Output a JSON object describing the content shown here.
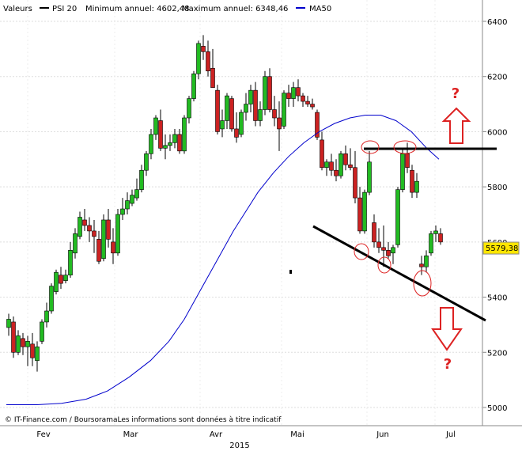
{
  "legend": {
    "valeurs_label": "Valeurs",
    "psi_label": "PSI 20",
    "min_label": "Minimum annuel: 4602,48",
    "max_label": "Maximum annuel: 6348,46",
    "ma_label": "MA50",
    "psi_color": "#000000",
    "ma_color": "#0000cc"
  },
  "footer": {
    "credit": "© IT-Finance.com / BoursoramaLes informations sont données à titre indicatif"
  },
  "last_price": {
    "label": "5579,38",
    "value": 5579.38
  },
  "annotations": {
    "question_top": "?",
    "question_bottom": "?"
  },
  "chart_data": {
    "type": "candlestick",
    "y_ticks": [
      5000,
      5200,
      5400,
      5600,
      5800,
      6000,
      6200,
      6400
    ],
    "y_tick_labels": [
      "5000",
      "5200",
      "5400",
      "5600",
      "5800",
      "6000",
      "6200",
      "6400"
    ],
    "ylim": [
      4960,
      6460
    ],
    "x_ticks": [
      "Fev",
      "Mar",
      "Avr",
      "Mai",
      "Jun",
      "Jul"
    ],
    "x_year": "2015",
    "colors": {
      "up": "#22bb22",
      "down": "#cc2222",
      "annot": "#dd2222"
    },
    "candles": [
      [
        5290,
        5340,
        5260,
        5320
      ],
      [
        5310,
        5330,
        5180,
        5200
      ],
      [
        5200,
        5280,
        5190,
        5260
      ],
      [
        5250,
        5270,
        5190,
        5220
      ],
      [
        5220,
        5260,
        5150,
        5240
      ],
      [
        5230,
        5270,
        5150,
        5180
      ],
      [
        5170,
        5240,
        5130,
        5220
      ],
      [
        5240,
        5320,
        5230,
        5310
      ],
      [
        5310,
        5380,
        5290,
        5350
      ],
      [
        5350,
        5450,
        5340,
        5440
      ],
      [
        5420,
        5500,
        5410,
        5490
      ],
      [
        5480,
        5510,
        5430,
        5450
      ],
      [
        5460,
        5500,
        5450,
        5480
      ],
      [
        5480,
        5600,
        5470,
        5570
      ],
      [
        5560,
        5650,
        5540,
        5630
      ],
      [
        5620,
        5710,
        5610,
        5690
      ],
      [
        5680,
        5720,
        5640,
        5660
      ],
      [
        5660,
        5690,
        5600,
        5640
      ],
      [
        5640,
        5680,
        5560,
        5620
      ],
      [
        5610,
        5640,
        5520,
        5530
      ],
      [
        5540,
        5700,
        5530,
        5680
      ],
      [
        5680,
        5720,
        5580,
        5610
      ],
      [
        5600,
        5650,
        5520,
        5560
      ],
      [
        5560,
        5720,
        5550,
        5700
      ],
      [
        5700,
        5760,
        5680,
        5720
      ],
      [
        5720,
        5780,
        5700,
        5750
      ],
      [
        5740,
        5790,
        5730,
        5770
      ],
      [
        5760,
        5830,
        5750,
        5790
      ],
      [
        5790,
        5880,
        5780,
        5860
      ],
      [
        5860,
        5930,
        5840,
        5920
      ],
      [
        5920,
        6010,
        5900,
        5990
      ],
      [
        5990,
        6060,
        5970,
        6050
      ],
      [
        6040,
        6080,
        5930,
        5940
      ],
      [
        5940,
        5990,
        5900,
        5950
      ],
      [
        5950,
        5990,
        5930,
        5960
      ],
      [
        5960,
        6010,
        5940,
        5990
      ],
      [
        5990,
        6010,
        5920,
        5930
      ],
      [
        5930,
        6060,
        5920,
        6050
      ],
      [
        6050,
        6130,
        6030,
        6120
      ],
      [
        6120,
        6220,
        6110,
        6210
      ],
      [
        6210,
        6330,
        6190,
        6320
      ],
      [
        6310,
        6350,
        6260,
        6290
      ],
      [
        6290,
        6330,
        6200,
        6220
      ],
      [
        6230,
        6300,
        6160,
        6160
      ],
      [
        6150,
        6170,
        5990,
        6000
      ],
      [
        6010,
        6080,
        5980,
        6040
      ],
      [
        6040,
        6140,
        6010,
        6130
      ],
      [
        6120,
        6130,
        6000,
        6010
      ],
      [
        6010,
        6070,
        5960,
        5980
      ],
      [
        5990,
        6080,
        5980,
        6070
      ],
      [
        6070,
        6140,
        6040,
        6100
      ],
      [
        6100,
        6170,
        6070,
        6150
      ],
      [
        6150,
        6180,
        6020,
        6040
      ],
      [
        6040,
        6110,
        6020,
        6080
      ],
      [
        6080,
        6220,
        6060,
        6200
      ],
      [
        6200,
        6230,
        6070,
        6080
      ],
      [
        6080,
        6130,
        6020,
        6050
      ],
      [
        6050,
        6110,
        5930,
        6010
      ],
      [
        6020,
        6150,
        6010,
        6140
      ],
      [
        6140,
        6170,
        6090,
        6120
      ],
      [
        6120,
        6180,
        6090,
        6160
      ],
      [
        6160,
        6190,
        6110,
        6130
      ],
      [
        6130,
        6140,
        6090,
        6110
      ],
      [
        6110,
        6130,
        6090,
        6100
      ],
      [
        6100,
        6120,
        6080,
        6090
      ],
      [
        6070,
        6080,
        5970,
        5980
      ],
      [
        5970,
        6000,
        5860,
        5870
      ],
      [
        5870,
        5900,
        5840,
        5890
      ],
      [
        5890,
        5920,
        5840,
        5860
      ],
      [
        5860,
        5900,
        5820,
        5840
      ],
      [
        5840,
        5930,
        5830,
        5920
      ],
      [
        5920,
        5950,
        5860,
        5880
      ],
      [
        5880,
        5940,
        5860,
        5870
      ],
      [
        5870,
        5930,
        5740,
        5760
      ],
      [
        5760,
        5800,
        5630,
        5640
      ],
      [
        5640,
        5790,
        5630,
        5780
      ],
      [
        5780,
        5930,
        5770,
        5890
      ],
      [
        5670,
        5700,
        5580,
        5600
      ],
      [
        5600,
        5650,
        5560,
        5580
      ],
      [
        5580,
        5660,
        5510,
        5570
      ],
      [
        5570,
        5600,
        5540,
        5550
      ],
      [
        5560,
        5590,
        5520,
        5580
      ],
      [
        5590,
        5800,
        5580,
        5790
      ],
      [
        5790,
        5940,
        5780,
        5920
      ],
      [
        5920,
        5960,
        5850,
        5870
      ],
      [
        5860,
        5880,
        5760,
        5780
      ],
      [
        5780,
        5850,
        5760,
        5820
      ],
      [
        5520,
        5550,
        5480,
        5510
      ],
      [
        5510,
        5570,
        5490,
        5550
      ],
      [
        5560,
        5640,
        5550,
        5630
      ],
      [
        5630,
        5660,
        5600,
        5640
      ],
      [
        5630,
        5650,
        5590,
        5600
      ]
    ],
    "ma50": [
      [
        5010,
        0
      ],
      [
        5010,
        10
      ],
      [
        5015,
        18
      ],
      [
        5030,
        26
      ],
      [
        5060,
        33
      ],
      [
        5110,
        40
      ],
      [
        5170,
        47
      ],
      [
        5240,
        53
      ],
      [
        5320,
        58
      ],
      [
        5400,
        62
      ],
      [
        5480,
        66
      ],
      [
        5560,
        70
      ],
      [
        5640,
        74
      ],
      [
        5710,
        78
      ],
      [
        5780,
        82
      ],
      [
        5850,
        87
      ],
      [
        5910,
        92
      ],
      [
        5960,
        97
      ],
      [
        6000,
        102
      ],
      [
        6030,
        107
      ],
      [
        6050,
        112
      ],
      [
        6060,
        117
      ],
      [
        6060,
        122
      ],
      [
        6040,
        127
      ],
      [
        6000,
        132
      ],
      [
        5940,
        137
      ],
      [
        5900,
        141
      ]
    ]
  }
}
